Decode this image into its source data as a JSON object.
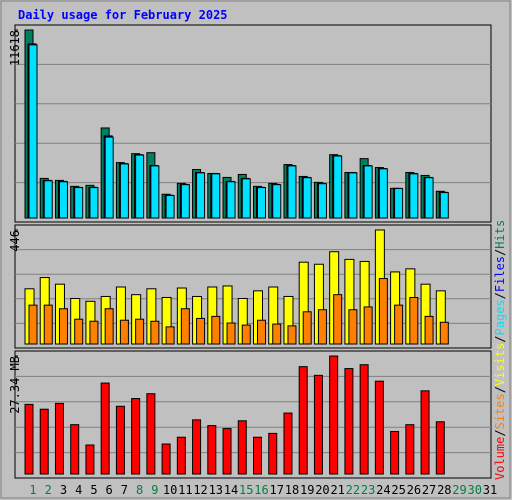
{
  "title": "Daily usage for February 2025",
  "legend_separator": "/",
  "chart_data": [
    {
      "type": "bar",
      "ylim": [
        0,
        11618
      ],
      "yticks": [
        11618
      ],
      "grid": true,
      "series": [
        {
          "name": "Hits",
          "color": "#008060",
          "values": [
            11618,
            2446,
            2324,
            1957,
            2018,
            5564,
            3424,
            3975,
            4036,
            1468,
            2140,
            2996,
            2752,
            2507,
            2691,
            1957,
            2140,
            3302,
            2568,
            2201,
            3913,
            2813,
            3669,
            3118,
            1834,
            2813,
            2629,
            1651,
            null,
            null,
            null
          ]
        },
        {
          "name": "Files",
          "color": "#0000ff",
          "values": [
            10762,
            2324,
            2262,
            1896,
            1896,
            5075,
            3363,
            3913,
            3241,
            1406,
            2079,
            2813,
            2752,
            2262,
            2446,
            1896,
            2079,
            3241,
            2507,
            2140,
            3852,
            2813,
            3241,
            3057,
            1834,
            2752,
            2507,
            1590,
            null,
            null,
            null
          ]
        },
        {
          "name": "Pages",
          "color": "#00e0ff",
          "values": [
            10700,
            2300,
            2240,
            1880,
            1880,
            5000,
            3340,
            3890,
            3220,
            1390,
            2060,
            2790,
            2730,
            2240,
            2420,
            1880,
            2060,
            3220,
            2490,
            2120,
            3830,
            2790,
            3220,
            3040,
            1820,
            2730,
            2490,
            1570,
            null,
            null,
            null
          ]
        }
      ]
    },
    {
      "type": "bar",
      "ylim": [
        0,
        446
      ],
      "yticks": [
        446
      ],
      "grid": true,
      "series": [
        {
          "name": "Visits",
          "color": "#ffff00",
          "values": [
            216,
            260,
            234,
            178,
            167,
            186,
            223,
            193,
            216,
            182,
            219,
            186,
            223,
            227,
            178,
            208,
            223,
            186,
            320,
            312,
            361,
            331,
            323,
            446,
            282,
            294,
            234,
            208,
            null,
            null,
            null
          ]
        },
        {
          "name": "Sites",
          "color": "#ff8000",
          "values": [
            152,
            152,
            138,
            97,
            89,
            138,
            93,
            97,
            89,
            67,
            138,
            100,
            108,
            82,
            74,
            93,
            78,
            71,
            126,
            134,
            193,
            134,
            145,
            256,
            152,
            182,
            108,
            85,
            null,
            null,
            null
          ]
        }
      ]
    },
    {
      "type": "bar",
      "ylim": [
        0,
        27.34
      ],
      "yticks": [
        {
          "value": 27.34,
          "label": "27.34 MB"
        }
      ],
      "grid": true,
      "categories": [
        "1",
        "2",
        "3",
        "4",
        "5",
        "6",
        "7",
        "8",
        "9",
        "10",
        "11",
        "12",
        "13",
        "14",
        "15",
        "16",
        "17",
        "18",
        "19",
        "20",
        "21",
        "22",
        "23",
        "24",
        "25",
        "26",
        "27",
        "28",
        "29",
        "30",
        "31"
      ],
      "label_colors": [
        "#008040",
        "#008040",
        "#000000",
        "#000000",
        "#000000",
        "#000000",
        "#000000",
        "#008040",
        "#008040",
        "#000000",
        "#000000",
        "#000000",
        "#000000",
        "#000000",
        "#008040",
        "#008040",
        "#000000",
        "#000000",
        "#000000",
        "#000000",
        "#000000",
        "#008040",
        "#008040",
        "#000000",
        "#000000",
        "#000000",
        "#000000",
        "#000000",
        "#008040",
        "#008040",
        "#000000"
      ],
      "series": [
        {
          "name": "Volume",
          "color": "#ff0000",
          "values": [
            16.13,
            15.01,
            16.36,
            11.43,
            6.72,
            21.07,
            15.69,
            17.48,
            18.6,
            6.95,
            8.52,
            12.55,
            11.21,
            10.53,
            12.33,
            8.52,
            9.41,
            14.12,
            24.87,
            22.86,
            27.34,
            24.43,
            25.32,
            21.51,
            9.86,
            11.43,
            19.27,
            12.1,
            null,
            null,
            null
          ]
        }
      ]
    }
  ]
}
